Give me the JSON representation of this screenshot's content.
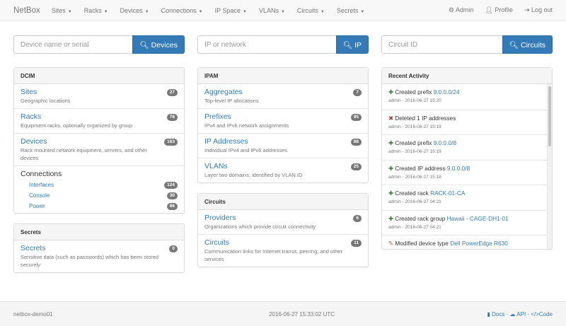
{
  "nav": {
    "brand": "NetBox",
    "menus": [
      "Sites",
      "Racks",
      "Devices",
      "Connections",
      "IP Space",
      "VLANs",
      "Circuits",
      "Secrets"
    ],
    "admin": "Admin",
    "profile": "Profile",
    "logout": "Log out"
  },
  "search": [
    {
      "placeholder": "Device name or serial",
      "button": "Devices"
    },
    {
      "placeholder": "IP or network",
      "button": "IP"
    },
    {
      "placeholder": "Circuit ID",
      "button": "Circuits"
    }
  ],
  "dcim": {
    "title": "DCIM",
    "items": [
      {
        "label": "Sites",
        "desc": "Geographic locations",
        "count": "27"
      },
      {
        "label": "Racks",
        "desc": "Equipment racks, optionally organized by group",
        "count": "78"
      },
      {
        "label": "Devices",
        "desc": "Rack-mounted network equipment, servers, and other devices",
        "count": "163"
      }
    ],
    "connections": {
      "label": "Connections",
      "items": [
        {
          "label": "Interfaces",
          "count": "124"
        },
        {
          "label": "Console",
          "count": "30"
        },
        {
          "label": "Power",
          "count": "86"
        }
      ]
    }
  },
  "secrets": {
    "title": "Secrets",
    "items": [
      {
        "label": "Secrets",
        "desc": "Sensitive data (such as passwords) which has been stored securely",
        "count": "0"
      }
    ]
  },
  "ipam": {
    "title": "IPAM",
    "items": [
      {
        "label": "Aggregates",
        "desc": "Top-level IP allocations",
        "count": "7"
      },
      {
        "label": "Prefixes",
        "desc": "IPv4 and IPv6 network assignments",
        "count": "95"
      },
      {
        "label": "IP Addresses",
        "desc": "Individual IPv4 and IPv6 addresses",
        "count": "88"
      },
      {
        "label": "VLANs",
        "desc": "Layer two domains, identified by VLAN ID",
        "count": "25"
      }
    ]
  },
  "circuits": {
    "title": "Circuits",
    "items": [
      {
        "label": "Providers",
        "desc": "Organizations which provide circuit connectivity",
        "count": "6"
      },
      {
        "label": "Circuits",
        "desc": "Communication links for Internet transit, peering, and other services",
        "count": "11"
      }
    ]
  },
  "activity": {
    "title": "Recent Activity",
    "items": [
      {
        "icon": "plus",
        "text": "Created prefix",
        "link": "9.0.0.0/24",
        "meta": "admin - 2016-06-27 15:20"
      },
      {
        "icon": "x",
        "text": "Deleted 1 IP addresses",
        "link": "",
        "meta": "admin - 2016-06-27 15:19"
      },
      {
        "icon": "plus",
        "text": "Created prefix",
        "link": "9.0.0.0/8",
        "meta": "admin - 2016-06-27 15:19"
      },
      {
        "icon": "plus",
        "text": "Created IP address",
        "link": "9.0.0.0/8",
        "meta": "admin - 2016-06-27 15:18"
      },
      {
        "icon": "plus",
        "text": "Created rack",
        "link": "RACK-01-CA",
        "meta": "admin - 2016-06-27 04:21"
      },
      {
        "icon": "plus",
        "text": "Created rack group",
        "link": "Hawaii - CAGE-DH1-01",
        "meta": "admin - 2016-06-27 04:21"
      },
      {
        "icon": "pencil",
        "text": "Modified device type",
        "link": "Dell PowerEdge R630",
        "meta": ""
      }
    ]
  },
  "footer": {
    "host": "netbox-demo01",
    "time": "2016-06-27 15:33:02 UTC",
    "docs": "Docs",
    "api": "API",
    "code": "Code"
  },
  "colors": {
    "accent": "#337ab7",
    "plus": "#3c763d",
    "x": "#a94442",
    "pencil": "#8a6d3b"
  }
}
